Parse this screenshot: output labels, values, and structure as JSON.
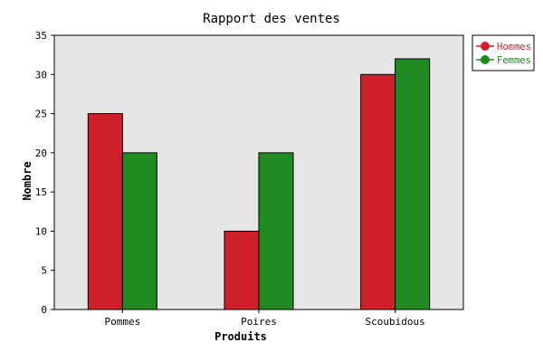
{
  "chart_data": {
    "type": "bar",
    "title": "Rapport des ventes",
    "xlabel": "Produits",
    "ylabel": "Nombre",
    "categories": [
      "Pommes",
      "Poires",
      "Scoubidous"
    ],
    "series": [
      {
        "name": "Hommes",
        "values": [
          25,
          10,
          30
        ],
        "color": "#d0202c"
      },
      {
        "name": "Femmes",
        "values": [
          20,
          20,
          32
        ],
        "color": "#218a21"
      }
    ],
    "ylim": [
      0,
      35
    ],
    "yticks": [
      0,
      5,
      10,
      15,
      20,
      25,
      30,
      35
    ],
    "grid": false,
    "legend_position": "right",
    "plot_background": "#e6e6e6"
  }
}
